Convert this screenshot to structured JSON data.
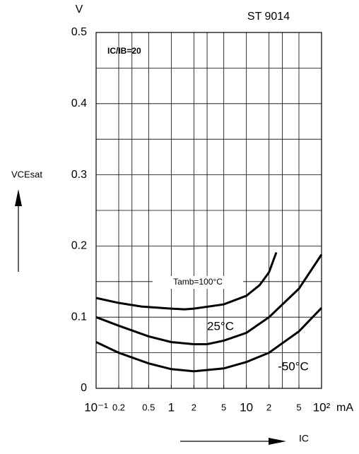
{
  "chart_data": {
    "type": "line",
    "title": "ST 9014",
    "annotation": "IC/IB=20",
    "y_label": "VCEsat",
    "y_unit": "V",
    "x_label": "IC",
    "x_unit": "mA",
    "log_x": true,
    "xlim": [
      0.1,
      100
    ],
    "ylim": [
      0,
      0.5
    ],
    "yticks": [
      0,
      0.1,
      0.2,
      0.3,
      0.4,
      0.5
    ],
    "ygrid": [
      0.05,
      0.1,
      0.15,
      0.2,
      0.25,
      0.3,
      0.35,
      0.4,
      0.45
    ],
    "xticks": [
      {
        "value": 0.1,
        "label": "10⁻¹"
      },
      0.2,
      0.5,
      1,
      {
        "value": 2,
        "label": "2"
      },
      {
        "value": 5,
        "label": "5"
      },
      10,
      {
        "value": 20,
        "label": "2"
      },
      {
        "value": 50,
        "label": "5"
      },
      {
        "value": 100,
        "label": "10²"
      }
    ],
    "xgrid": [
      0.2,
      0.3,
      0.5,
      1,
      2,
      3,
      5,
      10,
      20,
      30,
      50
    ],
    "color": "#000000",
    "series": [
      {
        "name": "Tamb=100°C",
        "x": [
          0.1,
          0.2,
          0.4,
          1,
          1.5,
          2,
          5,
          10,
          15,
          20,
          25
        ],
        "values": [
          0.127,
          0.12,
          0.115,
          0.112,
          0.111,
          0.112,
          0.118,
          0.13,
          0.145,
          0.163,
          0.191
        ]
      },
      {
        "name": "25°C",
        "x": [
          0.1,
          0.2,
          0.5,
          1,
          2,
          3,
          5,
          10,
          20,
          50,
          100
        ],
        "values": [
          0.1,
          0.088,
          0.073,
          0.065,
          0.062,
          0.062,
          0.067,
          0.078,
          0.1,
          0.14,
          0.188
        ]
      },
      {
        "name": "-50°C",
        "x": [
          0.1,
          0.2,
          0.5,
          1,
          2,
          5,
          10,
          20,
          50,
          100
        ],
        "values": [
          0.065,
          0.05,
          0.035,
          0.027,
          0.024,
          0.028,
          0.037,
          0.05,
          0.08,
          0.113
        ]
      }
    ]
  }
}
